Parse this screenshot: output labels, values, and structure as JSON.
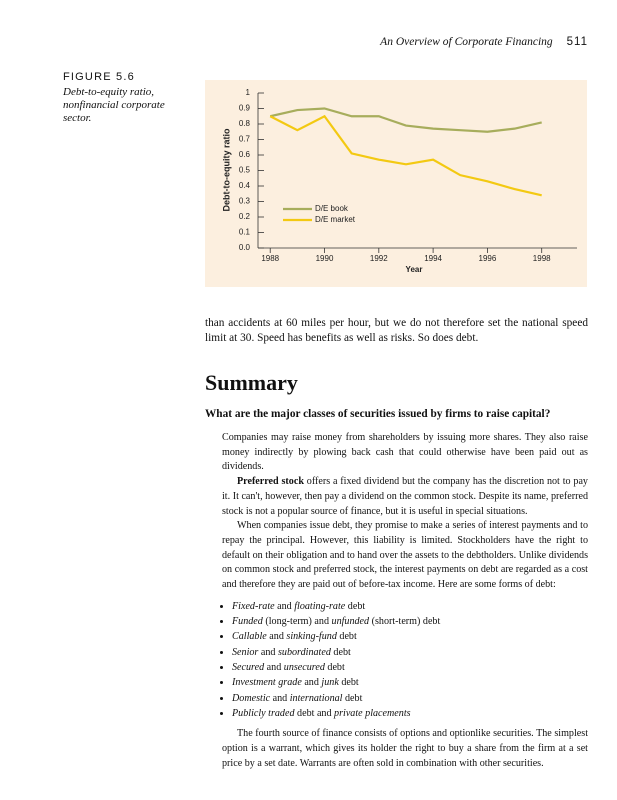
{
  "header": {
    "running_title": "An Overview of Corporate Financing",
    "page_number": "511"
  },
  "figure": {
    "label": "FIGURE 5.6",
    "caption": "Debt-to-equity ratio, nonfinancial corporate sector."
  },
  "chart_data": {
    "type": "line",
    "ylabel": "Debt-to-equity ratio",
    "xlabel": "Year",
    "x": [
      1988,
      1989,
      1990,
      1991,
      1992,
      1993,
      1994,
      1995,
      1996,
      1997,
      1998
    ],
    "series": [
      {
        "name": "D/E book",
        "color": "#a7ad5c",
        "values": [
          0.85,
          0.89,
          0.9,
          0.85,
          0.85,
          0.79,
          0.77,
          0.76,
          0.75,
          0.77,
          0.81
        ]
      },
      {
        "name": "D/E market",
        "color": "#f3c912",
        "values": [
          0.85,
          0.76,
          0.85,
          0.61,
          0.57,
          0.54,
          0.57,
          0.47,
          0.43,
          0.38,
          0.34
        ]
      }
    ],
    "xlim": [
      1987.55,
      1999.3
    ],
    "xticks": [
      1988,
      1990,
      1992,
      1994,
      1996,
      1998
    ],
    "ylim": [
      0,
      1
    ],
    "yticks": [
      {
        "value": 0,
        "label": "0.0"
      },
      0.1,
      0.2,
      0.3,
      0.4,
      0.5,
      0.6,
      0.7,
      0.8,
      0.9,
      1
    ],
    "legend": "lower-left"
  },
  "body": {
    "intro": "than accidents at 60 miles per hour, but we do not therefore set the national speed limit at 30. Speed has benefits as well as risks. So does debt.",
    "heading": "Summary",
    "question": "What are the major classes of securities issued by firms to raise capital?",
    "para1": "Companies may raise money from shareholders by issuing more shares. They also raise money indirectly by plowing back cash that could otherwise have been paid out as dividends.",
    "para2": [
      "Preferred stock",
      " offers a fixed dividend but the company has the discretion not to pay it. It can't, however, then pay a dividend on the common stock. Despite its name, preferred stock is not a popular source of finance, but it is useful in special situations."
    ],
    "para3": "When companies issue debt, they promise to make a series of interest payments and to repay the principal. However, this liability is limited. Stockholders have the right to default on their obligation and to hand over the assets to the debtholders. Unlike dividends on common stock and preferred stock, the interest payments on debt are regarded as a cost and therefore they are paid out of before-tax income. Here are some forms of debt:",
    "bullets": [
      [
        "Fixed-rate",
        " and ",
        "floating-rate",
        " debt"
      ],
      [
        "Funded",
        " (long-term) and ",
        "unfunded",
        " (short-term) debt"
      ],
      [
        "Callable",
        " and ",
        "sinking-fund",
        " debt"
      ],
      [
        "Senior",
        " and ",
        "subordinated",
        " debt"
      ],
      [
        "Secured",
        " and ",
        "unsecured",
        " debt"
      ],
      [
        "Investment grade",
        " and ",
        "junk",
        " debt"
      ],
      [
        "Domestic",
        " and ",
        "international",
        " debt"
      ],
      [
        "Publicly traded",
        " debt and ",
        "private placements"
      ]
    ],
    "para4": "The fourth source of finance consists of options and optionlike securities. The simplest option is a warrant, which gives its holder the right to buy a share from the firm at a set price by a set date. Warrants are often sold in combination with other securities."
  }
}
